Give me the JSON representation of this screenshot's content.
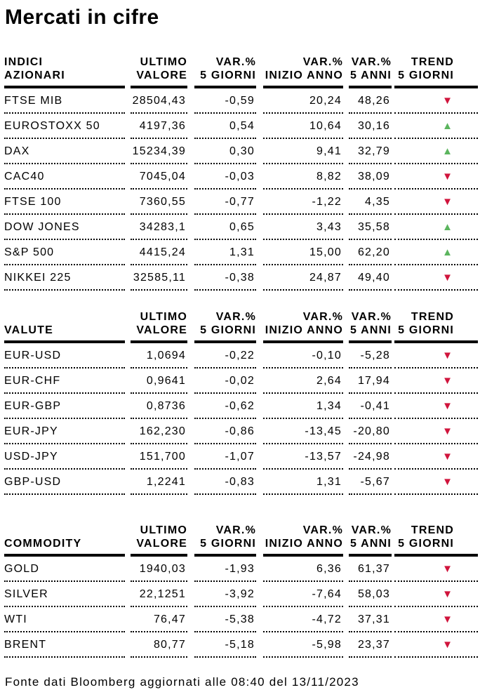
{
  "title": "Mercati in cifre",
  "footer": "Fonte dati Bloomberg aggiornati alle 08:40 del 13/11/2023",
  "header": {
    "ultimo_valore": [
      "ULTIMO",
      "VALORE"
    ],
    "var_5_giorni": [
      "VAR.%",
      "5 GIORNI"
    ],
    "var_inizio_anno": [
      "VAR.%",
      "INIZIO ANNO"
    ],
    "var_5_anni": [
      "VAR.%",
      "5 ANNI"
    ],
    "trend_5_giorni": [
      "TREND",
      "5 GIORNI"
    ]
  },
  "icons": {
    "trend_up": "▲",
    "trend_down": "▼"
  },
  "colors": {
    "trend_up": "#5BB55E",
    "trend_down": "#D0143C"
  },
  "tables": [
    {
      "id": "indici-azionari",
      "title_lines": [
        "INDICI",
        "AZIONARI"
      ],
      "rows": [
        {
          "name": "FTSE MIB",
          "ultimo": "28504,43",
          "var_5_giorni": "-0,59",
          "var_inizio_anno": "20,24",
          "var_5_anni": "48,26",
          "trend": "down"
        },
        {
          "name": "EUROSTOXX 50",
          "ultimo": "4197,36",
          "var_5_giorni": "0,54",
          "var_inizio_anno": "10,64",
          "var_5_anni": "30,16",
          "trend": "up"
        },
        {
          "name": "DAX",
          "ultimo": "15234,39",
          "var_5_giorni": "0,30",
          "var_inizio_anno": "9,41",
          "var_5_anni": "32,79",
          "trend": "up"
        },
        {
          "name": "CAC40",
          "ultimo": "7045,04",
          "var_5_giorni": "-0,03",
          "var_inizio_anno": "8,82",
          "var_5_anni": "38,09",
          "trend": "down"
        },
        {
          "name": "FTSE 100",
          "ultimo": "7360,55",
          "var_5_giorni": "-0,77",
          "var_inizio_anno": "-1,22",
          "var_5_anni": "4,35",
          "trend": "down"
        },
        {
          "name": "DOW JONES",
          "ultimo": "34283,1",
          "var_5_giorni": "0,65",
          "var_inizio_anno": "3,43",
          "var_5_anni": "35,58",
          "trend": "up"
        },
        {
          "name": "S&P 500",
          "ultimo": "4415,24",
          "var_5_giorni": "1,31",
          "var_inizio_anno": "15,00",
          "var_5_anni": "62,20",
          "trend": "up"
        },
        {
          "name": "NIKKEI 225",
          "ultimo": "32585,11",
          "var_5_giorni": "-0,38",
          "var_inizio_anno": "24,87",
          "var_5_anni": "49,40",
          "trend": "down"
        }
      ]
    },
    {
      "id": "valute",
      "title_lines": [
        "VALUTE"
      ],
      "rows": [
        {
          "name": "EUR-USD",
          "ultimo": "1,0694",
          "var_5_giorni": "-0,22",
          "var_inizio_anno": "-0,10",
          "var_5_anni": "-5,28",
          "trend": "down"
        },
        {
          "name": "EUR-CHF",
          "ultimo": "0,9641",
          "var_5_giorni": "-0,02",
          "var_inizio_anno": "2,64",
          "var_5_anni": "17,94",
          "trend": "down"
        },
        {
          "name": "EUR-GBP",
          "ultimo": "0,8736",
          "var_5_giorni": "-0,62",
          "var_inizio_anno": "1,34",
          "var_5_anni": "-0,41",
          "trend": "down"
        },
        {
          "name": "EUR-JPY",
          "ultimo": "162,230",
          "var_5_giorni": "-0,86",
          "var_inizio_anno": "-13,45",
          "var_5_anni": "-20,80",
          "trend": "down"
        },
        {
          "name": "USD-JPY",
          "ultimo": "151,700",
          "var_5_giorni": "-1,07",
          "var_inizio_anno": "-13,57",
          "var_5_anni": "-24,98",
          "trend": "down"
        },
        {
          "name": "GBP-USD",
          "ultimo": "1,2241",
          "var_5_giorni": "-0,83",
          "var_inizio_anno": "1,31",
          "var_5_anni": "-5,67",
          "trend": "down"
        }
      ]
    },
    {
      "id": "commodity",
      "title_lines": [
        "COMMODITY"
      ],
      "rows": [
        {
          "name": "GOLD",
          "ultimo": "1940,03",
          "var_5_giorni": "-1,93",
          "var_inizio_anno": "6,36",
          "var_5_anni": "61,37",
          "trend": "down"
        },
        {
          "name": "SILVER",
          "ultimo": "22,1251",
          "var_5_giorni": "-3,92",
          "var_inizio_anno": "-7,64",
          "var_5_anni": "58,03",
          "trend": "down"
        },
        {
          "name": "WTI",
          "ultimo": "76,47",
          "var_5_giorni": "-5,38",
          "var_inizio_anno": "-4,72",
          "var_5_anni": "37,31",
          "trend": "down"
        },
        {
          "name": "BRENT",
          "ultimo": "80,77",
          "var_5_giorni": "-5,18",
          "var_inizio_anno": "-5,98",
          "var_5_anni": "23,37",
          "trend": "down"
        }
      ]
    }
  ]
}
